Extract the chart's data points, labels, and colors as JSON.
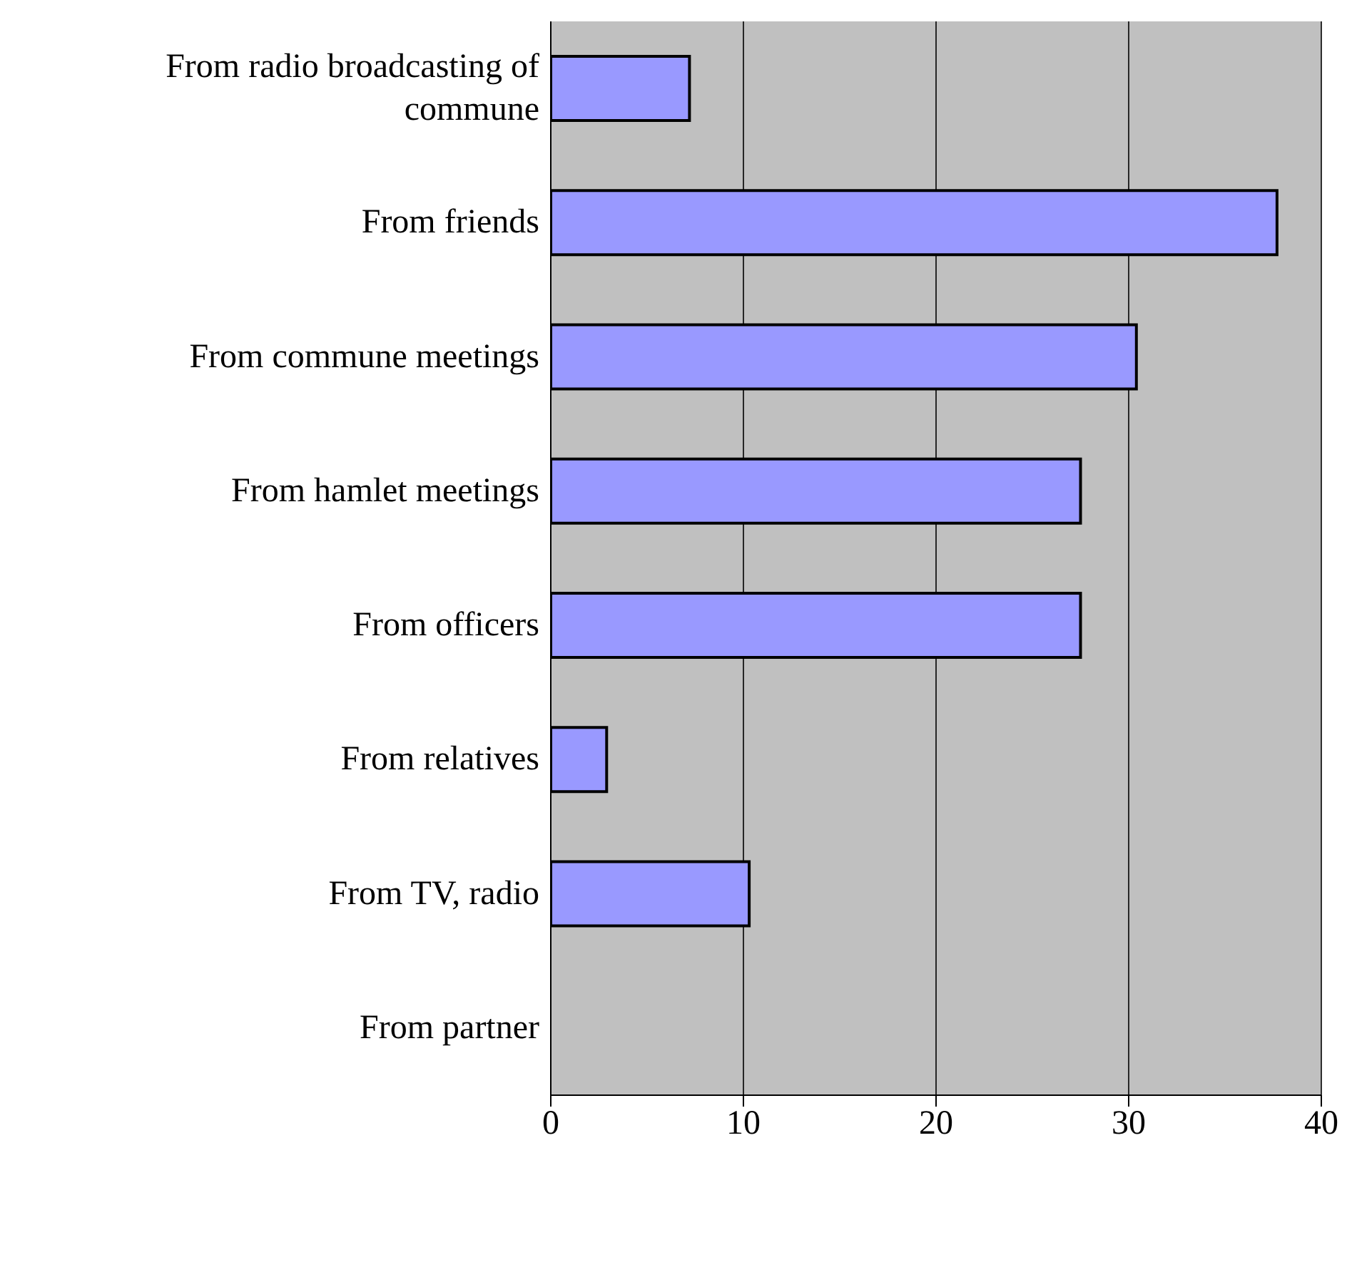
{
  "chart_data": {
    "type": "bar",
    "orientation": "horizontal",
    "categories": [
      "From radio broadcasting of commune",
      "From friends",
      "From commune meetings",
      "From hamlet meetings",
      "From officers",
      "From relatives",
      "From TV, radio",
      "From partner"
    ],
    "values": [
      7.2,
      37.7,
      30.4,
      27.5,
      27.5,
      2.9,
      10.3,
      0
    ],
    "color": "#9999ff",
    "xlim": [
      0,
      40
    ],
    "xticks": [
      0,
      10,
      20,
      30,
      40
    ],
    "grid": "x"
  }
}
